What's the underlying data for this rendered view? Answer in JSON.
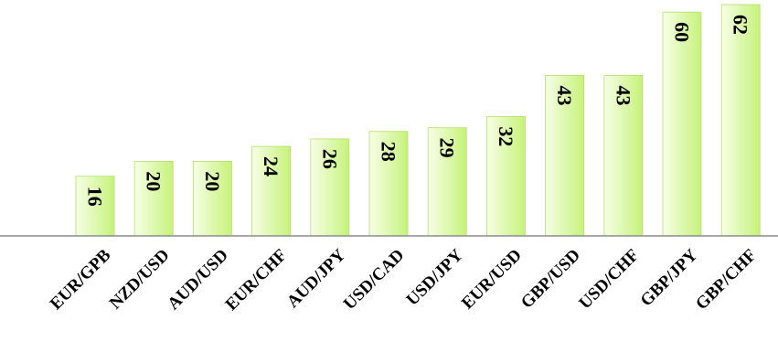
{
  "chart_data": {
    "type": "bar",
    "title": "",
    "xlabel": "",
    "ylabel": "",
    "categories": [
      "EUR/GPB",
      "NZD/USD",
      "AUD/USD",
      "EUR/CHF",
      "AUD/JPY",
      "USD/CAD",
      "USD/JPY",
      "EUR/USD",
      "GBP/USD",
      "USD/CHF",
      "GBP/JPY",
      "GBP/CHF"
    ],
    "values": [
      16,
      20,
      20,
      24,
      26,
      28,
      29,
      32,
      43,
      43,
      60,
      62
    ],
    "ylim": [
      0,
      62
    ],
    "grid": false,
    "legend": "none",
    "data_labels": true,
    "colors": {
      "bar_gradient_start": "#f7ffe6",
      "bar_gradient_end": "#c6f27a",
      "bar_edge": "#b4e06a",
      "axis_line": "#8c8c8c",
      "text": "#000000"
    }
  }
}
